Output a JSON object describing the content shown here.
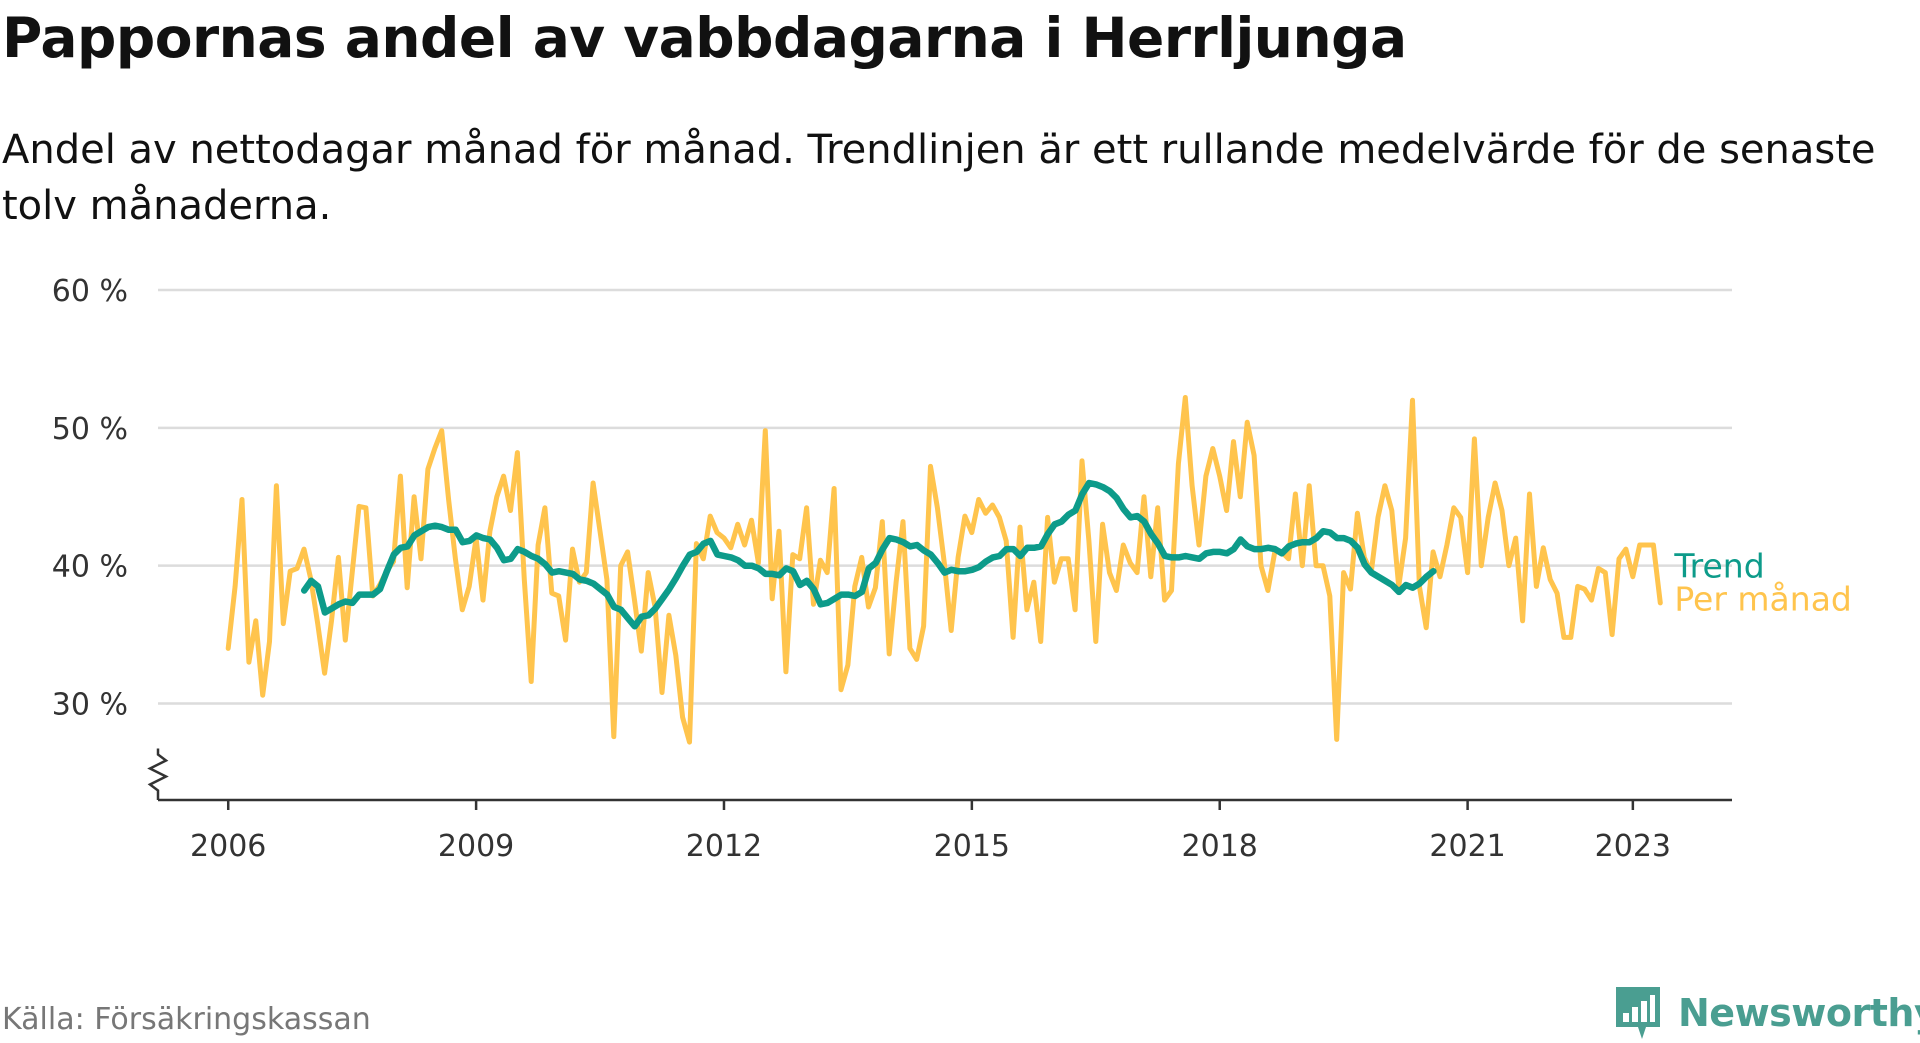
{
  "title": "Pappornas andel av vabbdagarna i Herrljunga",
  "subtitle": "Andel av nettodagar månad för månad. Trendlinjen är ett rullande medelvärde för de senaste tolv månaderna.",
  "source": "Källa: Försäkringskassan",
  "brand": "Newsworthy",
  "colors": {
    "monthly": "#ffc44d",
    "trend": "#0d9b8a",
    "grid": "#dcdcdc",
    "axis": "#333333",
    "brand": "#4a9e91"
  },
  "chart_data": {
    "type": "line",
    "x_unit": "year (decimal, monthly points)",
    "y_unit": "percent",
    "ylim": [
      23,
      60
    ],
    "y_ticks": [
      30,
      40,
      50,
      60
    ],
    "y_tick_labels": [
      "30 %",
      "40 %",
      "50 %",
      "60 %"
    ],
    "x_ticks": [
      2006,
      2009,
      2012,
      2015,
      2018,
      2021,
      2023
    ],
    "x_tick_labels": [
      "2006",
      "2009",
      "2012",
      "2015",
      "2018",
      "2021",
      "2023"
    ],
    "xlim": [
      2005.15,
      2024.2
    ],
    "axis_break": true,
    "grid": true,
    "series": [
      {
        "name": "Per månad",
        "role": "monthly",
        "x_start": 2006.0,
        "x_step": 0.08333,
        "values": [
          34.0,
          38.5,
          44.8,
          33.0,
          36.0,
          30.6,
          34.5,
          45.8,
          35.8,
          39.6,
          39.8,
          41.2,
          39.0,
          35.8,
          32.2,
          36.0,
          40.6,
          34.6,
          39.5,
          44.3,
          44.2,
          37.8,
          38.6,
          39.6,
          40.3,
          46.5,
          38.4,
          45.0,
          40.5,
          47.0,
          48.5,
          49.8,
          44.8,
          40.5,
          36.8,
          38.5,
          42.0,
          37.5,
          42.5,
          45.0,
          46.5,
          44.0,
          48.2,
          39.0,
          31.6,
          41.5,
          44.2,
          38.0,
          37.8,
          34.6,
          41.2,
          38.8,
          39.5,
          46.0,
          42.5,
          39.0,
          27.6,
          40.0,
          41.0,
          37.5,
          33.8,
          39.5,
          37.0,
          30.8,
          36.4,
          33.5,
          29.0,
          27.2,
          41.6,
          40.5,
          43.6,
          42.4,
          42.0,
          41.3,
          43.0,
          41.5,
          43.3,
          40.2,
          49.8,
          37.6,
          42.5,
          32.3,
          40.8,
          40.5,
          44.2,
          37.2,
          40.4,
          39.5,
          45.6,
          31.0,
          32.8,
          38.5,
          40.6,
          37.0,
          38.4,
          43.2,
          33.6,
          38.8,
          43.2,
          34.0,
          33.2,
          35.6,
          47.2,
          44.2,
          40.2,
          35.3,
          40.6,
          43.6,
          42.4,
          44.8,
          43.8,
          44.4,
          43.5,
          41.8,
          34.8,
          42.8,
          36.8,
          38.8,
          34.5,
          43.5,
          38.8,
          40.5,
          40.5,
          36.8,
          47.6,
          41.8,
          34.5,
          43.0,
          39.5,
          38.2,
          41.5,
          40.2,
          39.5,
          45.0,
          39.2,
          44.2,
          37.5,
          38.2,
          47.4,
          52.2,
          45.8,
          41.5,
          46.5,
          48.5,
          46.5,
          44.0,
          49.0,
          45.0,
          50.4,
          48.0,
          40.0,
          38.2,
          41.0,
          41.0,
          40.5,
          45.2,
          40.0,
          45.8,
          40.0,
          40.0,
          37.8,
          27.4,
          39.5,
          38.3,
          43.8,
          40.6,
          39.5,
          43.5,
          45.8,
          44.0,
          38.5,
          42.0,
          52.0,
          38.5,
          35.5,
          41.0,
          39.2,
          41.5,
          44.2,
          43.5,
          39.5,
          49.2,
          40.0,
          43.5,
          46.0,
          44.0,
          40.0,
          42.0,
          36.0,
          45.2,
          38.5,
          41.3,
          39.0,
          38.0,
          34.8,
          34.8,
          38.5,
          38.3,
          37.5,
          39.8,
          39.5,
          35.0,
          40.5,
          41.2,
          39.2,
          41.5,
          41.5,
          41.5,
          37.3
        ]
      },
      {
        "name": "Trend",
        "role": "trend",
        "x_start": 2006.92,
        "x_step": 0.08333,
        "values": [
          38.2,
          38.9,
          38.5,
          36.6,
          36.9,
          37.2,
          37.4,
          37.3,
          37.9,
          37.9,
          37.9,
          38.3,
          39.6,
          40.8,
          41.3,
          41.4,
          42.2,
          42.5,
          42.8,
          42.9,
          42.8,
          42.6,
          42.6,
          41.7,
          41.8,
          42.2,
          42.0,
          41.9,
          41.3,
          40.4,
          40.5,
          41.2,
          41.0,
          40.7,
          40.5,
          40.1,
          39.5,
          39.6,
          39.5,
          39.4,
          39.0,
          38.9,
          38.7,
          38.3,
          37.9,
          37.0,
          36.8,
          36.2,
          35.6,
          36.3,
          36.4,
          36.9,
          37.6,
          38.3,
          39.1,
          40.0,
          40.8,
          41.0,
          41.6,
          41.8,
          40.8,
          40.7,
          40.6,
          40.4,
          40.0,
          40.0,
          39.8,
          39.4,
          39.4,
          39.3,
          39.8,
          39.6,
          38.6,
          38.9,
          38.3,
          37.2,
          37.3,
          37.6,
          37.9,
          37.9,
          37.8,
          38.1,
          39.8,
          40.2,
          41.2,
          42.0,
          41.9,
          41.7,
          41.4,
          41.5,
          41.1,
          40.8,
          40.2,
          39.5,
          39.7,
          39.6,
          39.6,
          39.7,
          39.9,
          40.3,
          40.6,
          40.7,
          41.2,
          41.2,
          40.7,
          41.3,
          41.3,
          41.4,
          42.3,
          43.0,
          43.2,
          43.7,
          44.0,
          45.2,
          46.0,
          45.9,
          45.7,
          45.4,
          44.9,
          44.1,
          43.5,
          43.6,
          43.2,
          42.3,
          41.6,
          40.7,
          40.6,
          40.6,
          40.7,
          40.6,
          40.5,
          40.9,
          41.0,
          41.0,
          40.9,
          41.2,
          41.9,
          41.4,
          41.2,
          41.2,
          41.3,
          41.2,
          40.9,
          41.4,
          41.6,
          41.7,
          41.7,
          42.0,
          42.5,
          42.4,
          42.0,
          42.0,
          41.8,
          41.3,
          40.1,
          39.5,
          39.2,
          38.9,
          38.6,
          38.1,
          38.6,
          38.4,
          38.7,
          39.2,
          39.6
        ]
      }
    ],
    "labels": {
      "trend": "Trend",
      "monthly": "Per månad"
    }
  }
}
